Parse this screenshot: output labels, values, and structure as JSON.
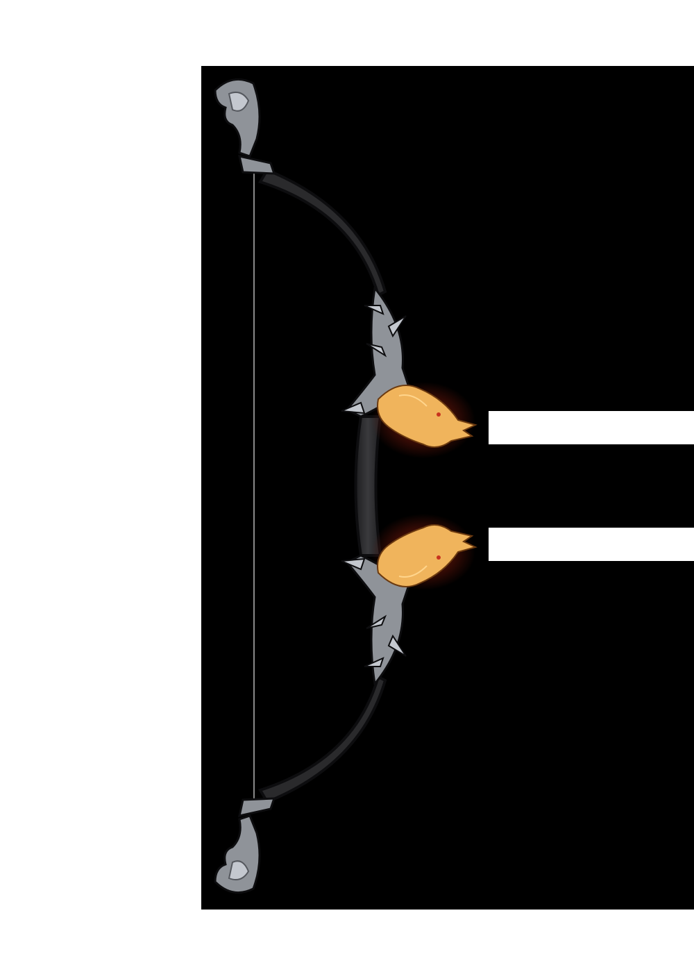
{
  "artwork": {
    "subject": "dragon-bow-icon",
    "colors": {
      "background": "#ffffff",
      "panel": "#000000",
      "limb": "#2a2a2c",
      "limb_edge": "#0d0d0f",
      "metal": "#8f9399",
      "metal_light": "#c4c8cf",
      "metal_dark": "#55585e",
      "string": "#8a8a8a",
      "dragon": "#f0b45c",
      "dragon_light": "#ffd58c",
      "dragon_glow": "#c8321e"
    }
  }
}
